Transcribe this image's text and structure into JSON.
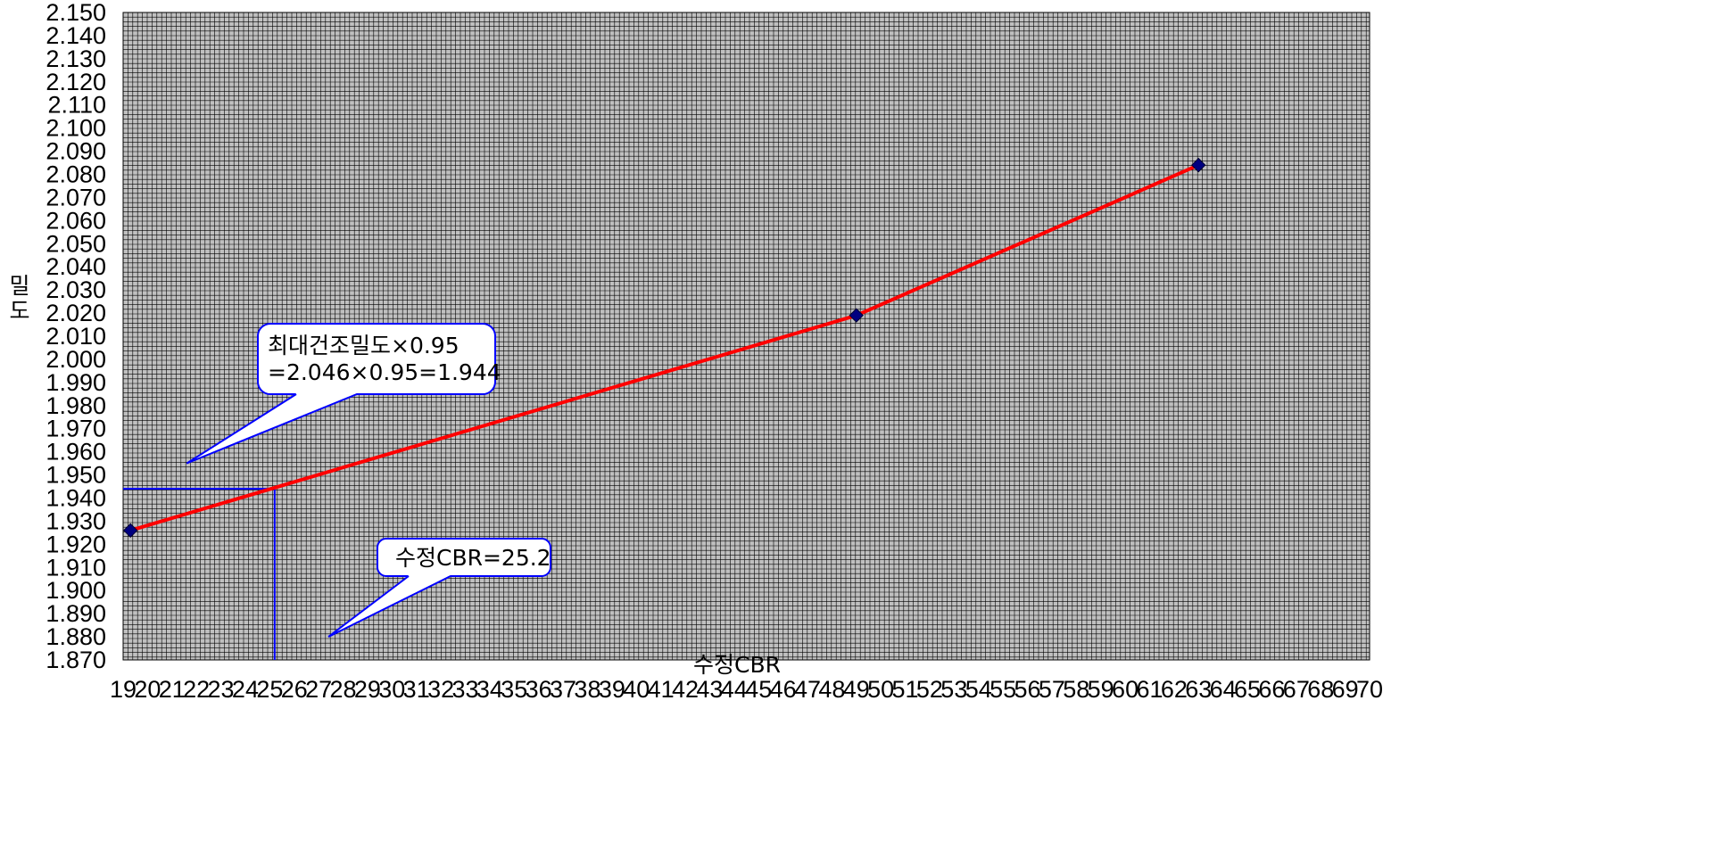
{
  "chart_data": {
    "type": "line",
    "title": "",
    "xlabel": "수정CBR",
    "ylabel": "밀도",
    "xlim": [
      19,
      70
    ],
    "ylim": [
      1.87,
      2.15
    ],
    "x_ticks": [
      19,
      20,
      21,
      22,
      23,
      24,
      25,
      26,
      27,
      28,
      29,
      30,
      31,
      32,
      33,
      34,
      35,
      36,
      37,
      38,
      39,
      40,
      41,
      42,
      43,
      44,
      45,
      46,
      47,
      48,
      49,
      50,
      51,
      52,
      53,
      54,
      55,
      56,
      57,
      58,
      59,
      60,
      61,
      62,
      63,
      64,
      65,
      66,
      67,
      68,
      69,
      70
    ],
    "y_ticks": [
      "1.870",
      "1.880",
      "1.890",
      "1.900",
      "1.910",
      "1.920",
      "1.930",
      "1.940",
      "1.950",
      "1.960",
      "1.970",
      "1.980",
      "1.990",
      "2.000",
      "2.010",
      "2.020",
      "2.030",
      "2.040",
      "2.050",
      "2.060",
      "2.070",
      "2.080",
      "2.090",
      "2.100",
      "2.110",
      "2.120",
      "2.130",
      "2.140",
      "2.150"
    ],
    "grid": true,
    "legend": "none",
    "series": [
      {
        "points": [
          [
            19.3,
            1.926
          ],
          [
            49.0,
            2.019
          ],
          [
            63.0,
            2.084
          ]
        ],
        "line_color": "#ff0000",
        "marker_color": "#000080"
      }
    ],
    "reference_lines": {
      "x": 25.2,
      "y": 1.944,
      "color": "#0000ff"
    },
    "annotations": [
      {
        "lines": [
          "최대건조밀도×0.95",
          "=2.046×0.95=1.944"
        ],
        "pointer_to": [
          21.6,
          1.955
        ]
      },
      {
        "lines": [
          "수정CBR=25.2"
        ],
        "pointer_to": [
          27.4,
          1.88
        ]
      }
    ],
    "colors": {
      "plot_background": "#c0c0c0",
      "grid": "#000000",
      "callout_border": "#0000ff",
      "callout_fill": "#ffffff"
    }
  }
}
